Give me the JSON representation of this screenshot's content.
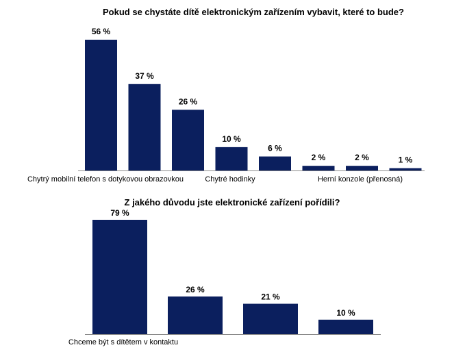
{
  "colors": {
    "bar": "#0b1f5e",
    "axis": "#888888",
    "text": "#000000"
  },
  "chart_data": [
    {
      "type": "bar",
      "title": "Pokud se chystáte dítě elektronickým zařízením vybavit, které to bude?",
      "categories": [
        "Chytrý mobilní telefon s dotykovou obrazovkou",
        "",
        "",
        "Chytré hodinky",
        "",
        "",
        "Herní konzole (přenosná)",
        ""
      ],
      "values": [
        56,
        37,
        26,
        10,
        6,
        2,
        2,
        1
      ],
      "value_labels": [
        "56 %",
        "37 %",
        "26 %",
        "10 %",
        "6 %",
        "2 %",
        "2 %",
        "1 %"
      ],
      "unit": "%",
      "xlabel": "",
      "ylabel": "",
      "ylim": [
        0,
        56
      ],
      "grid": false,
      "legend": "none"
    },
    {
      "type": "bar",
      "title": "Z jakého důvodu jste elektronické zařízení pořídili?",
      "categories": [
        "Chceme být s dítětem v kontaktu",
        "",
        "",
        ""
      ],
      "values": [
        79,
        26,
        21,
        10
      ],
      "value_labels": [
        "79 %",
        "26 %",
        "21 %",
        "10 %"
      ],
      "unit": "%",
      "xlabel": "",
      "ylabel": "",
      "ylim": [
        0,
        79
      ],
      "grid": false,
      "legend": "none"
    }
  ]
}
